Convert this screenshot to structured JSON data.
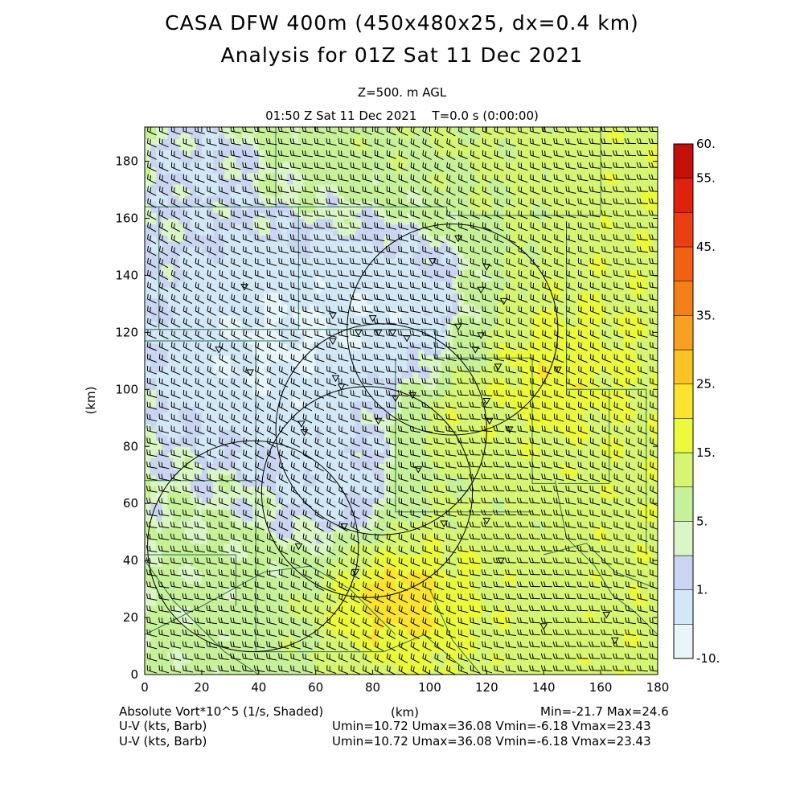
{
  "header": {
    "title_line1": "CASA DFW 400m (450x480x25, dx=0.4 km)",
    "title_line2": "Analysis for 01Z Sat 11 Dec 2021",
    "level": "Z=500. m AGL",
    "time": "01:50 Z Sat 11 Dec 2021    T=0.0 s (0:00:00)"
  },
  "footer": {
    "shaded_label": "Absolute Vort*10^5 (1/s, Shaded)",
    "xunits": "(km)",
    "minmax": "Min=-21.7 Max=24.6",
    "barb1_label": "U-V (kts, Barb)",
    "barb1_stats": "Umin=10.72 Umax=36.08 Vmin=-6.18 Vmax=23.43",
    "barb2_label": "U-V (kts, Barb)",
    "barb2_stats": "Umin=10.72 Umax=36.08 Vmin=-6.18 Vmax=23.43"
  },
  "colors": {
    "bins": [
      "#e8f6fa",
      "#d2e8f6",
      "#cad5f1",
      "#dbf6c6",
      "#c6f198",
      "#d6f572",
      "#ecfa3c",
      "#fbe32e",
      "#fac426",
      "#f8a022",
      "#f47e18",
      "#f26012",
      "#ec3f10",
      "#de220d",
      "#c4100a",
      "#a80606"
    ]
  },
  "chart_data": {
    "type": "heatmap",
    "xlabel": "",
    "ylabel": "(km)",
    "xlim": [
      0,
      180
    ],
    "ylim": [
      0,
      192
    ],
    "xticks": [
      0,
      20,
      40,
      60,
      80,
      100,
      120,
      140,
      160,
      180
    ],
    "yticks": [
      0,
      20,
      40,
      60,
      80,
      100,
      120,
      140,
      160,
      180
    ],
    "colorbar": {
      "labels": [
        {
          "value": 60,
          "text": "60."
        },
        {
          "value": 55,
          "text": "55."
        },
        {
          "value": 45,
          "text": "45."
        },
        {
          "value": 35,
          "text": "35."
        },
        {
          "value": 25,
          "text": "25."
        },
        {
          "value": 15,
          "text": "15."
        },
        {
          "value": 5,
          "text": "5."
        },
        {
          "value": 1,
          "text": "1."
        },
        {
          "value": -10,
          "text": "-10."
        }
      ],
      "n_bins": 15
    },
    "field": {
      "name": "Absolute Vort*10^5",
      "min": -21.7,
      "max": 24.6
    },
    "radar_rings": [
      {
        "cx": 38,
        "cy": 45,
        "r": 37
      },
      {
        "cx": 78,
        "cy": 64,
        "r": 37
      },
      {
        "cx": 83,
        "cy": 86,
        "r": 37
      },
      {
        "cx": 108,
        "cy": 121,
        "r": 37
      }
    ],
    "station_markers": [
      [
        89,
        192
      ],
      [
        101,
        145
      ],
      [
        35,
        136
      ],
      [
        66,
        126
      ],
      [
        80,
        125
      ],
      [
        110,
        153
      ],
      [
        118,
        135
      ],
      [
        120,
        143
      ],
      [
        126,
        131
      ],
      [
        66,
        117
      ],
      [
        75,
        120
      ],
      [
        82,
        120
      ],
      [
        87,
        120
      ],
      [
        92,
        118
      ],
      [
        110,
        122
      ],
      [
        118,
        119
      ],
      [
        26,
        114
      ],
      [
        37,
        106
      ],
      [
        67,
        104
      ],
      [
        69,
        101
      ],
      [
        88,
        97
      ],
      [
        94,
        98
      ],
      [
        116,
        114
      ],
      [
        124,
        108
      ],
      [
        145,
        107
      ],
      [
        120,
        96
      ],
      [
        121,
        89
      ],
      [
        128,
        86
      ],
      [
        55,
        88
      ],
      [
        56,
        85
      ],
      [
        82,
        89
      ],
      [
        96,
        72
      ],
      [
        70,
        52
      ],
      [
        54,
        45
      ],
      [
        105,
        53
      ],
      [
        120,
        54
      ],
      [
        125,
        40
      ],
      [
        74,
        36
      ],
      [
        140,
        17
      ],
      [
        162,
        21
      ],
      [
        165,
        12
      ]
    ]
  }
}
